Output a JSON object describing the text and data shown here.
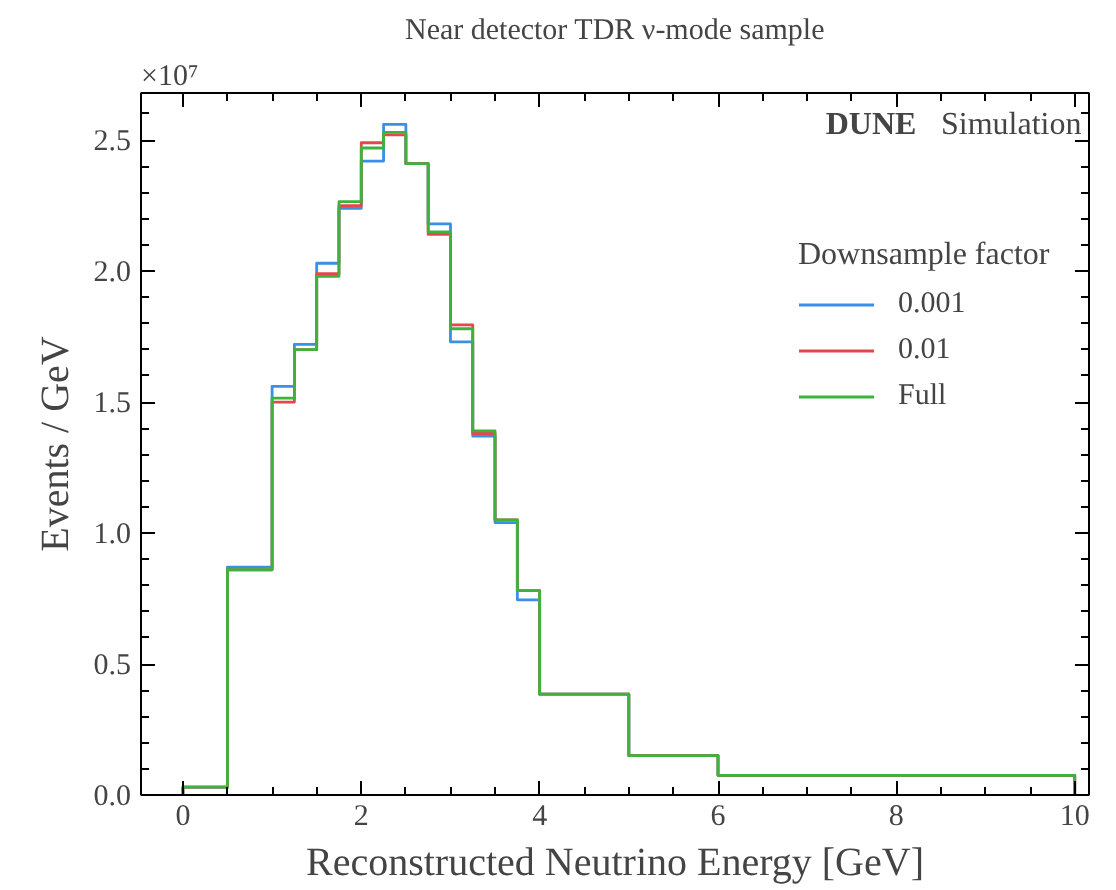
{
  "chart_data": {
    "type": "histogram",
    "title": "Near detector TDR ν-mode sample",
    "xlabel": "Reconstructed Neutrino Energy [GeV]",
    "ylabel": "Events / GeV",
    "legend_title": "Downsample factor",
    "annotations": [
      "×10⁷",
      "DUNE Simulation"
    ],
    "bins": [
      0,
      0.5,
      1,
      1.25,
      1.5,
      1.75,
      2,
      2.25,
      2.5,
      2.75,
      3,
      3.25,
      3.5,
      3.75,
      4,
      5,
      6,
      10
    ],
    "series": [
      {
        "name": "0.001",
        "color": "#3a8fe6",
        "values": [
          0.03,
          0.87,
          1.56,
          1.72,
          2.03,
          2.24,
          2.42,
          2.56,
          2.41,
          2.18,
          1.73,
          1.37,
          1.04,
          0.745,
          0.385,
          0.15,
          0.075
        ]
      },
      {
        "name": "0.01",
        "color": "#e5474f",
        "values": [
          0.03,
          0.86,
          1.5,
          1.7,
          1.99,
          2.25,
          2.49,
          2.52,
          2.41,
          2.14,
          1.795,
          1.38,
          1.05,
          0.78,
          0.385,
          0.15,
          0.075
        ]
      },
      {
        "name": "Full",
        "color": "#3cb43c",
        "values": [
          0.03,
          0.86,
          1.515,
          1.7,
          1.98,
          2.265,
          2.47,
          2.53,
          2.41,
          2.15,
          1.78,
          1.39,
          1.05,
          0.78,
          0.385,
          0.15,
          0.075
        ]
      }
    ],
    "xlim": [
      -0.47,
      10.16
    ],
    "ylim": [
      0,
      2.68
    ],
    "xticks": [
      0,
      2,
      4,
      6,
      8,
      10
    ],
    "yticks": [
      {
        "value": 0,
        "label": "0.0"
      },
      {
        "value": 0.5,
        "label": "0.5"
      },
      {
        "value": 1,
        "label": "1.0"
      },
      {
        "value": 1.5,
        "label": "1.5"
      },
      {
        "value": 2,
        "label": "2.0"
      },
      {
        "value": 2.5,
        "label": "2.5"
      }
    ],
    "legend": "top right",
    "grid": false
  }
}
